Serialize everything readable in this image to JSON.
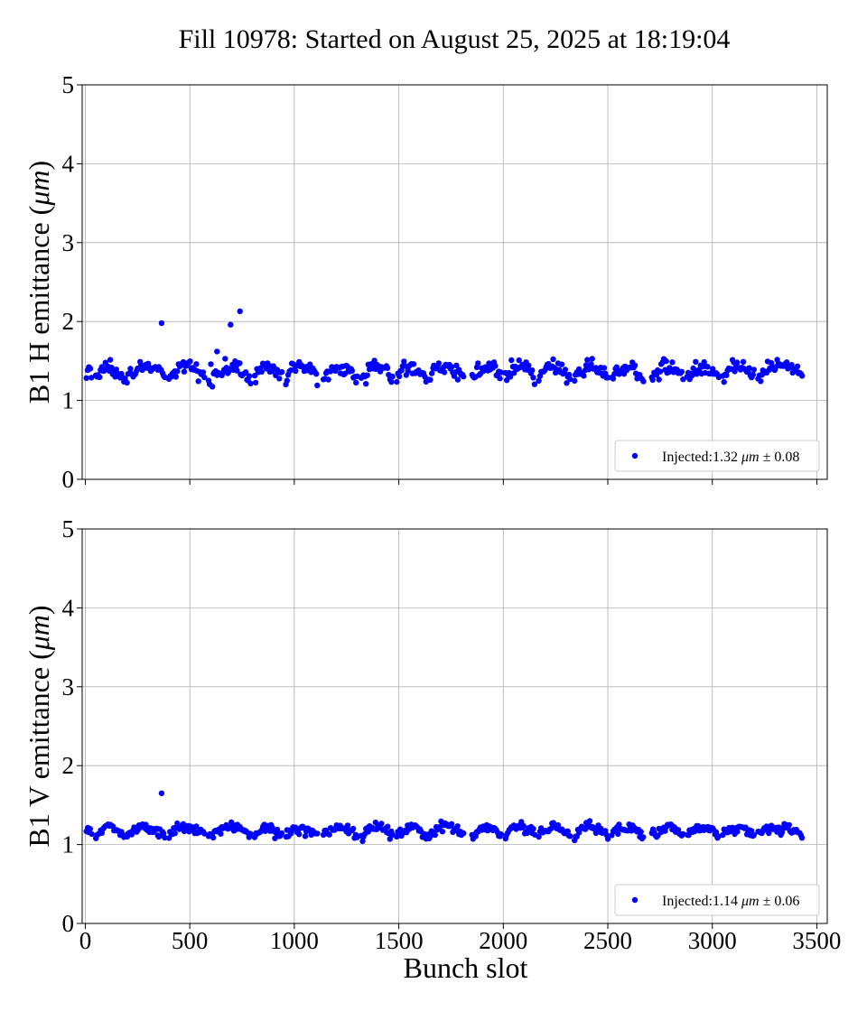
{
  "figure": {
    "title": "Fill 10978: Started on August 25, 2025 at 18:19:04"
  },
  "chart_data": [
    {
      "type": "scatter",
      "panel": "top",
      "ylabel_prefix": "B1 H emittance (",
      "ylabel_unit": "μm",
      "ylabel_suffix": ")",
      "xlabel": "",
      "xlim": [
        -15,
        3550
      ],
      "ylim": [
        0,
        5
      ],
      "xticks": [
        0,
        500,
        1000,
        1500,
        2000,
        2500,
        3000,
        3500
      ],
      "yticks": [
        0,
        1,
        2,
        3,
        4,
        5
      ],
      "show_xtick_labels": false,
      "grid": true,
      "legend_position": "lower-right",
      "series": [
        {
          "name": "Injected:1.32 μm ± 0.08",
          "legend_prefix": "Injected:1.32 ",
          "legend_unit": "μm",
          "legend_suffix": " ± 0.08",
          "color": "#0000ff",
          "model": {
            "mean": 1.32,
            "sd": 0.08,
            "bunch_groups": [
              [
                5,
                30
              ],
              [
                50,
                190
              ],
              [
                200,
                380
              ],
              [
                400,
                570
              ],
              [
                590,
                790
              ],
              [
                810,
                940
              ],
              [
                960,
                1110
              ],
              [
                1140,
                1300
              ],
              [
                1320,
                1470
              ],
              [
                1490,
                1630
              ],
              [
                1640,
                1810
              ],
              [
                1850,
                1990
              ],
              [
                2010,
                2150
              ],
              [
                2170,
                2320
              ],
              [
                2340,
                2500
              ],
              [
                2520,
                2670
              ],
              [
                2710,
                2860
              ],
              [
                2880,
                3030
              ],
              [
                3050,
                3200
              ],
              [
                3220,
                3430
              ]
            ],
            "outliers": [
              [
                365,
                1.98
              ],
              [
                695,
                1.96
              ],
              [
                740,
                2.13
              ],
              [
                630,
                1.62
              ]
            ]
          }
        }
      ]
    },
    {
      "type": "scatter",
      "panel": "bottom",
      "ylabel_prefix": "B1 V emittance (",
      "ylabel_unit": "μm",
      "ylabel_suffix": ")",
      "xlabel": "Bunch slot",
      "xlim": [
        -15,
        3550
      ],
      "ylim": [
        0,
        5
      ],
      "xticks": [
        0,
        500,
        1000,
        1500,
        2000,
        2500,
        3000,
        3500
      ],
      "yticks": [
        0,
        1,
        2,
        3,
        4,
        5
      ],
      "show_xtick_labels": true,
      "grid": true,
      "legend_position": "lower-right",
      "series": [
        {
          "name": "Injected:1.14 μm ± 0.06",
          "legend_prefix": "Injected:1.14 ",
          "legend_unit": "μm",
          "legend_suffix": " ± 0.06",
          "color": "#0000ff",
          "model": {
            "mean": 1.14,
            "sd": 0.06,
            "bunch_groups": [
              [
                5,
                30
              ],
              [
                50,
                190
              ],
              [
                200,
                380
              ],
              [
                400,
                570
              ],
              [
                590,
                790
              ],
              [
                810,
                940
              ],
              [
                960,
                1110
              ],
              [
                1140,
                1300
              ],
              [
                1320,
                1470
              ],
              [
                1490,
                1630
              ],
              [
                1640,
                1810
              ],
              [
                1850,
                1990
              ],
              [
                2010,
                2150
              ],
              [
                2170,
                2320
              ],
              [
                2340,
                2500
              ],
              [
                2520,
                2670
              ],
              [
                2710,
                2860
              ],
              [
                2880,
                3030
              ],
              [
                3050,
                3200
              ],
              [
                3220,
                3430
              ]
            ],
            "outliers": [
              [
                365,
                1.65
              ]
            ]
          }
        }
      ]
    }
  ]
}
